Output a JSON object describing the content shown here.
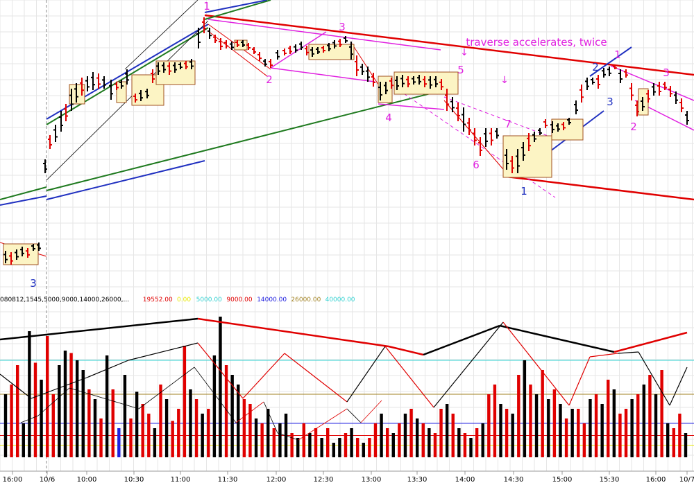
{
  "chart_data": [
    {
      "type": "bar",
      "panel": "price",
      "title": "",
      "annotation": "traverse accelerates, twice",
      "wave_labels": [
        {
          "text": "1",
          "color": "#e020e0"
        },
        {
          "text": "2",
          "color": "#e020e0"
        },
        {
          "text": "3",
          "color": "#e020e0"
        },
        {
          "text": "4",
          "color": "#e020e0"
        },
        {
          "text": "5",
          "color": "#e020e0"
        },
        {
          "text": "6",
          "color": "#e020e0"
        },
        {
          "text": "7",
          "color": "#e020e0"
        },
        {
          "text": "1",
          "color": "#2030c0"
        },
        {
          "text": "2",
          "color": "#2030c0"
        },
        {
          "text": "3",
          "color": "#2030c0"
        },
        {
          "text": "3",
          "color": "#2030c0"
        },
        {
          "text": "1",
          "color": "#e020e0"
        },
        {
          "text": "2",
          "color": "#e020e0"
        },
        {
          "text": "3",
          "color": "#e020e0"
        }
      ],
      "arrows": [
        "↓",
        "↓"
      ],
      "x_tick_labels": [
        "16:00",
        "10/6",
        "10:00",
        "10:30",
        "11:00",
        "11:30",
        "12:00",
        "12:30",
        "13:00",
        "13:30",
        "14:00",
        "14:30",
        "15:00",
        "15:30",
        "16:00",
        "10/7"
      ],
      "grid": true
    },
    {
      "type": "bar",
      "panel": "volume",
      "legend": [
        {
          "text": "080812,1545,5000,9000,14000,26000,...",
          "color": "#000000"
        },
        {
          "text": "19552.00",
          "color": "#e00000"
        },
        {
          "text": "0.00",
          "color": "#e8e800"
        },
        {
          "text": "5000.00",
          "color": "#30d0d0"
        },
        {
          "text": "9000.00",
          "color": "#e00000"
        },
        {
          "text": "14000.00",
          "color": "#2020e0"
        },
        {
          "text": "26000.00",
          "color": "#a08020"
        },
        {
          "text": "40000.00",
          "color": "#30d0d0"
        }
      ],
      "reference_levels": [
        5000,
        9000,
        14000,
        26000,
        40000
      ],
      "values": [
        26000,
        30000,
        38000,
        14000,
        52000,
        39000,
        32000,
        50000,
        26000,
        38000,
        44000,
        43000,
        40000,
        36000,
        28000,
        24000,
        16000,
        42000,
        28000,
        12000,
        34000,
        16000,
        27000,
        22000,
        18000,
        12000,
        30000,
        24000,
        15000,
        20000,
        46000,
        28000,
        24000,
        18000,
        20000,
        42000,
        58000,
        38000,
        34000,
        30000,
        24000,
        22000,
        16000,
        14000,
        20000,
        12000,
        14000,
        18000,
        10000,
        8000,
        14000,
        10000,
        12000,
        8000,
        12000,
        6000,
        8000,
        10000,
        12000,
        8000,
        6000,
        8000,
        14000,
        18000,
        12000,
        10000,
        14000,
        18000,
        20000,
        16000,
        14000,
        12000,
        10000,
        20000,
        22000,
        18000,
        12000,
        10000,
        8000,
        12000,
        14000,
        26000,
        30000,
        22000,
        20000,
        18000,
        34000,
        40000,
        30000,
        26000,
        36000,
        24000,
        28000,
        22000,
        16000,
        20000,
        20000,
        14000,
        24000,
        26000,
        22000,
        32000,
        28000,
        18000,
        20000,
        24000,
        26000,
        30000,
        34000,
        26000,
        36000,
        14000,
        12000,
        18000,
        10000
      ],
      "colors": [
        "k",
        "r",
        "r",
        "k",
        "k",
        "r",
        "k",
        "r",
        "r",
        "k",
        "k",
        "r",
        "k",
        "k",
        "r",
        "k",
        "r",
        "k",
        "r",
        "b",
        "k",
        "r",
        "k",
        "r",
        "r",
        "k",
        "r",
        "k",
        "r",
        "r",
        "r",
        "k",
        "r",
        "k",
        "r",
        "k",
        "k",
        "r",
        "k",
        "k",
        "r",
        "r",
        "k",
        "r",
        "k",
        "r",
        "k",
        "k",
        "r",
        "k",
        "r",
        "k",
        "r",
        "k",
        "r",
        "k",
        "k",
        "r",
        "k",
        "r",
        "k",
        "r",
        "r",
        "k",
        "r",
        "k",
        "r",
        "k",
        "r",
        "k",
        "r",
        "k",
        "r",
        "r",
        "k",
        "r",
        "k",
        "r",
        "k",
        "r",
        "k",
        "r",
        "r",
        "k",
        "r",
        "k",
        "r",
        "k",
        "r",
        "k",
        "r",
        "k",
        "r",
        "k",
        "r",
        "k",
        "r",
        "r",
        "k",
        "r",
        "k",
        "r",
        "k",
        "r",
        "r",
        "k",
        "r",
        "k",
        "r",
        "k",
        "r",
        "k",
        "r",
        "r",
        "k"
      ]
    }
  ]
}
